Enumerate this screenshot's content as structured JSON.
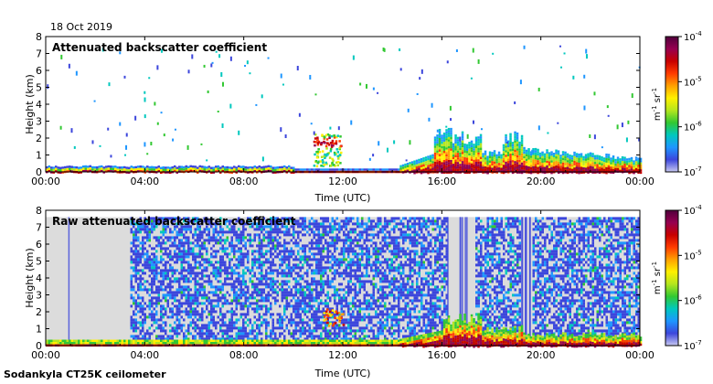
{
  "date": "18 Oct 2019",
  "footer": "Sodankyla CT25K ceilometer",
  "colors": {
    "colormap": [
      "#c8c8f0",
      "#3c46dc",
      "#1e96ff",
      "#00c8be",
      "#32c832",
      "#b4e61e",
      "#fff000",
      "#ffa000",
      "#ff3c00",
      "#c80000",
      "#960050",
      "#50003c"
    ],
    "clear_background": "#ffffff",
    "raw_background": "#dcdcdc",
    "frame": "#000000"
  },
  "chart_data": [
    {
      "type": "heatmap",
      "title": "Attenuated backscatter coefficient",
      "xlabel": "Time (UTC)",
      "ylabel": "Height (km)",
      "xticks": [
        "00:00",
        "04:00",
        "08:00",
        "12:00",
        "16:00",
        "20:00",
        "00:00"
      ],
      "yticks": [
        "0",
        "1",
        "2",
        "3",
        "4",
        "5",
        "6",
        "7",
        "8"
      ],
      "xlim_hours": [
        0,
        24
      ],
      "ylim_km": [
        0,
        8
      ],
      "colorbar": {
        "scale": "log",
        "range": [
          1e-07,
          0.0001
        ],
        "tick_labels": [
          {
            "base": "10",
            "exp": "-7"
          },
          {
            "base": "10",
            "exp": "-6"
          },
          {
            "base": "10",
            "exp": "-5"
          },
          {
            "base": "10",
            "exp": "-4"
          }
        ],
        "unit": {
          "m": "m",
          "m_exp": "-1",
          "sr": "sr",
          "sr_exp": "-1"
        }
      },
      "features": {
        "surface_layer_top_km": 0.4,
        "cloud_11h_hours": [
          10.8,
          11.9
        ],
        "cloud_11h_top_km": 2.3,
        "low_cloud_hours": [
          14.3,
          24
        ],
        "low_cloud_max_top_km": 2.6
      }
    },
    {
      "type": "heatmap",
      "title": "Raw attenuated backscatter coefficient",
      "xlabel": "Time (UTC)",
      "ylabel": "Height (km)",
      "xticks": [
        "00:00",
        "04:00",
        "08:00",
        "12:00",
        "16:00",
        "20:00",
        "00:00"
      ],
      "yticks": [
        "0",
        "1",
        "2",
        "3",
        "4",
        "5",
        "6",
        "7",
        "8"
      ],
      "xlim_hours": [
        0,
        24
      ],
      "ylim_km": [
        0,
        8
      ],
      "colorbar": {
        "scale": "log",
        "range": [
          1e-07,
          0.0001
        ],
        "tick_labels": [
          {
            "base": "10",
            "exp": "-7"
          },
          {
            "base": "10",
            "exp": "-6"
          },
          {
            "base": "10",
            "exp": "-5"
          },
          {
            "base": "10",
            "exp": "-4"
          }
        ],
        "unit": {
          "m": "m",
          "m_exp": "-1",
          "sr": "sr",
          "sr_exp": "-1"
        }
      },
      "features": {
        "data_top_km": 7.6,
        "noise_free_hours": [
          [
            0,
            3.4
          ],
          [
            16.2,
            17.3
          ],
          [
            19.2,
            19.6
          ]
        ],
        "low_cloud_hours": [
          14.3,
          24
        ],
        "low_cloud_max_top_km": 2.0
      }
    }
  ]
}
